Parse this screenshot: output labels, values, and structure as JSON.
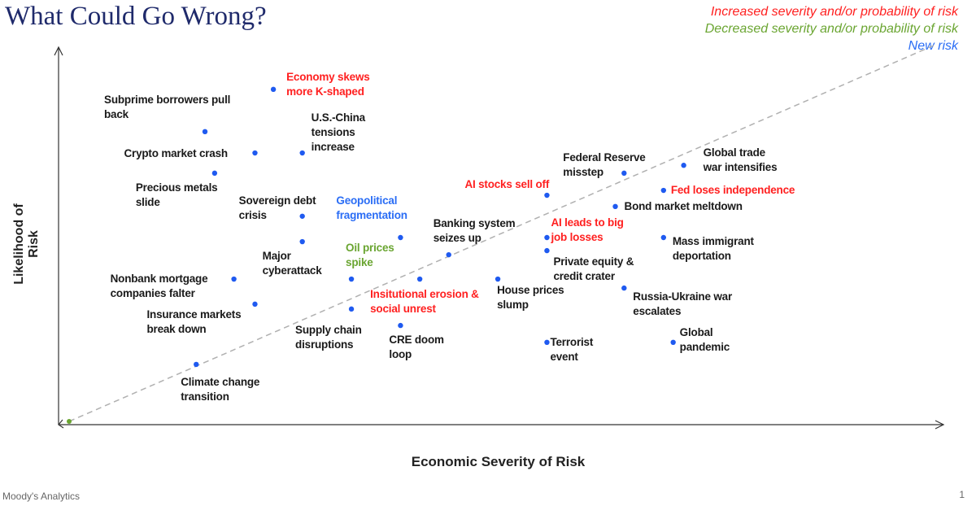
{
  "title": "What Could Go Wrong?",
  "legend": [
    {
      "label": "Increased severity and/or probability of risk",
      "color": "#ff2020"
    },
    {
      "label": "Decreased severity and/or probability of risk",
      "color": "#6aa531"
    },
    {
      "label": "New risk",
      "color": "#2a6df5"
    }
  ],
  "footer": {
    "source": "Moody's Analytics",
    "page": "1"
  },
  "chart_data": {
    "type": "scatter",
    "xlabel": "Economic Severity of Risk",
    "ylabel": "Likelihood of Risk",
    "xlim": [
      0,
      10
    ],
    "ylim": [
      0,
      10
    ],
    "axis_ticks": false,
    "grid": false,
    "reference_line": "dashed diagonal",
    "marker_color": "#1f5af0",
    "points": [
      {
        "label": "Economy skews\nmore K-shaped",
        "x": 2.45,
        "y": 8.96,
        "status": "increased"
      },
      {
        "label": "Subprime borrowers pull\nback",
        "x": 1.67,
        "y": 7.83,
        "status": "unchanged"
      },
      {
        "label": "Crypto market crash",
        "x": 2.24,
        "y": 7.26,
        "status": "unchanged"
      },
      {
        "label": "U.S.-China\ntensions\nincrease",
        "x": 2.78,
        "y": 7.26,
        "status": "unchanged"
      },
      {
        "label": "Precious metals\nslide",
        "x": 1.78,
        "y": 6.72,
        "status": "unchanged"
      },
      {
        "label": "Sovereign debt\ncrisis",
        "x": 2.78,
        "y": 5.57,
        "status": "unchanged"
      },
      {
        "label": "Geopolitical\nfragmentation",
        "x": 3.9,
        "y": 5.0,
        "status": "new"
      },
      {
        "label": "Major\ncyberattack",
        "x": 2.78,
        "y": 4.89,
        "status": "unchanged"
      },
      {
        "label": "Oil prices\nspike",
        "x": 3.34,
        "y": 3.89,
        "status": "decreased"
      },
      {
        "label": "Banking system\nseizes up",
        "x": 4.45,
        "y": 4.54,
        "status": "unchanged"
      },
      {
        "label": "Insitutional erosion &\nsocial unrest",
        "x": 4.12,
        "y": 3.89,
        "status": "increased"
      },
      {
        "label": "Supply chain\ndisruptions",
        "x": 3.34,
        "y": 3.09,
        "status": "unchanged"
      },
      {
        "label": "CRE doom\nloop",
        "x": 3.9,
        "y": 2.65,
        "status": "unchanged"
      },
      {
        "label": "House prices\nslump",
        "x": 5.01,
        "y": 3.89,
        "status": "unchanged"
      },
      {
        "label": "Nonbank mortgage\ncompanies falter",
        "x": 2.0,
        "y": 3.89,
        "status": "unchanged"
      },
      {
        "label": "Insurance markets\nbreak down",
        "x": 2.24,
        "y": 3.22,
        "status": "unchanged"
      },
      {
        "label": "Climate change\ntransition",
        "x": 1.57,
        "y": 1.61,
        "status": "unchanged"
      },
      {
        "label": "AI stocks sell off",
        "x": 5.57,
        "y": 6.13,
        "status": "increased"
      },
      {
        "label": "Federal Reserve\nmisstep",
        "x": 6.45,
        "y": 6.72,
        "status": "unchanged"
      },
      {
        "label": "Global trade\nwar intensifies",
        "x": 7.13,
        "y": 6.93,
        "status": "unchanged"
      },
      {
        "label": "Fed loses independence",
        "x": 6.9,
        "y": 6.26,
        "status": "increased"
      },
      {
        "label": "Bond market meltdown",
        "x": 6.35,
        "y": 5.83,
        "status": "unchanged"
      },
      {
        "label": "AI leads to big\njob losses",
        "x": 5.57,
        "y": 5.0,
        "status": "increased"
      },
      {
        "label": "Private equity &\ncredit crater",
        "x": 5.57,
        "y": 4.65,
        "status": "unchanged"
      },
      {
        "label": "Mass immigrant\ndeportation",
        "x": 6.9,
        "y": 5.0,
        "status": "unchanged"
      },
      {
        "label": "Russia-Ukraine war\nescalates",
        "x": 6.45,
        "y": 3.65,
        "status": "unchanged"
      },
      {
        "label": "Terrorist\nevent",
        "x": 5.57,
        "y": 2.2,
        "status": "unchanged"
      },
      {
        "label": "Global\npandemic",
        "x": 7.01,
        "y": 2.2,
        "status": "unchanged"
      }
    ],
    "status_colors": {
      "increased": "#ff2020",
      "decreased": "#6aa531",
      "new": "#2a6df5",
      "unchanged": "#1a1a1a"
    }
  }
}
